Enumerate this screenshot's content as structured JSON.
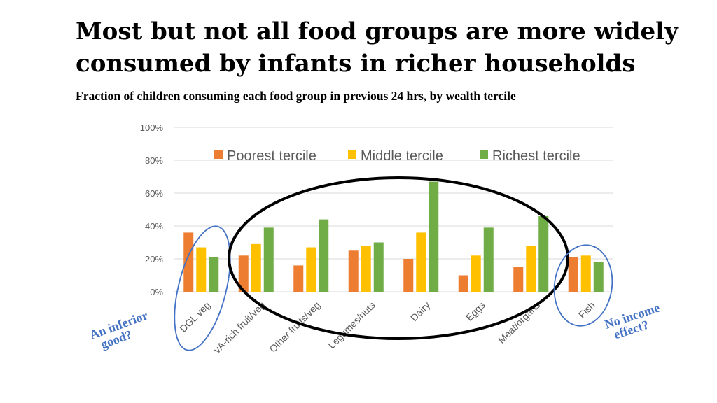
{
  "page": {
    "title": "Most but not all food groups are more widely consumed by infants in richer households",
    "subtitle": "Fraction of children consuming each food group in previous 24 hrs, by wealth tercile"
  },
  "annotations": {
    "inferior": [
      "An inferior",
      "good?"
    ],
    "no_income": [
      "No income",
      "effect?"
    ]
  },
  "colors": {
    "poorest": "#ED7D31",
    "middle": "#FFC000",
    "richest": "#70AD47",
    "annotation": "#4472C4",
    "grid": "#D9D9D9"
  },
  "chart_data": {
    "type": "bar",
    "categories": [
      "DGL veg",
      "vA-rich fruit/veg",
      "Other fruits/veg",
      "Legumes/nuts",
      "Dairy",
      "Eggs",
      "Meat/organs",
      "Fish"
    ],
    "series": [
      {
        "name": "Poorest tercile",
        "values": [
          0.36,
          0.22,
          0.16,
          0.25,
          0.2,
          0.1,
          0.15,
          0.21
        ]
      },
      {
        "name": "Middle tercile",
        "values": [
          0.27,
          0.29,
          0.27,
          0.28,
          0.36,
          0.22,
          0.28,
          0.22
        ]
      },
      {
        "name": "Richest tercile",
        "values": [
          0.21,
          0.39,
          0.44,
          0.3,
          0.67,
          0.39,
          0.46,
          0.18
        ]
      }
    ],
    "y_ticks": [
      "0%",
      "20%",
      "40%",
      "60%",
      "80%",
      "100%"
    ],
    "ylim": [
      0,
      1
    ],
    "grid": true,
    "legend": "top"
  }
}
